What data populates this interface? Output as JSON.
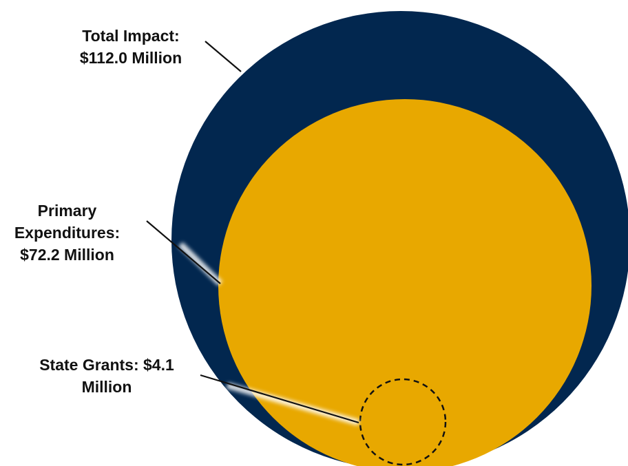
{
  "diagram": {
    "type": "nested-bubble",
    "colors": {
      "outer": "#02274f",
      "inner": "#e8a800",
      "background": "#ffffff",
      "leader": "#111111"
    },
    "circles": [
      {
        "id": "total-impact",
        "label_lines": [
          "Total Impact:",
          "$112.0 Million"
        ],
        "value_million": 112.0
      },
      {
        "id": "primary-expenditures",
        "label_lines": [
          "Primary",
          "Expenditures:",
          "$72.2 Million"
        ],
        "value_million": 72.2
      },
      {
        "id": "state-grants",
        "label_lines": [
          "State Grants: $4.1",
          "Million"
        ],
        "value_million": 4.1,
        "outline": "dashed"
      }
    ]
  }
}
